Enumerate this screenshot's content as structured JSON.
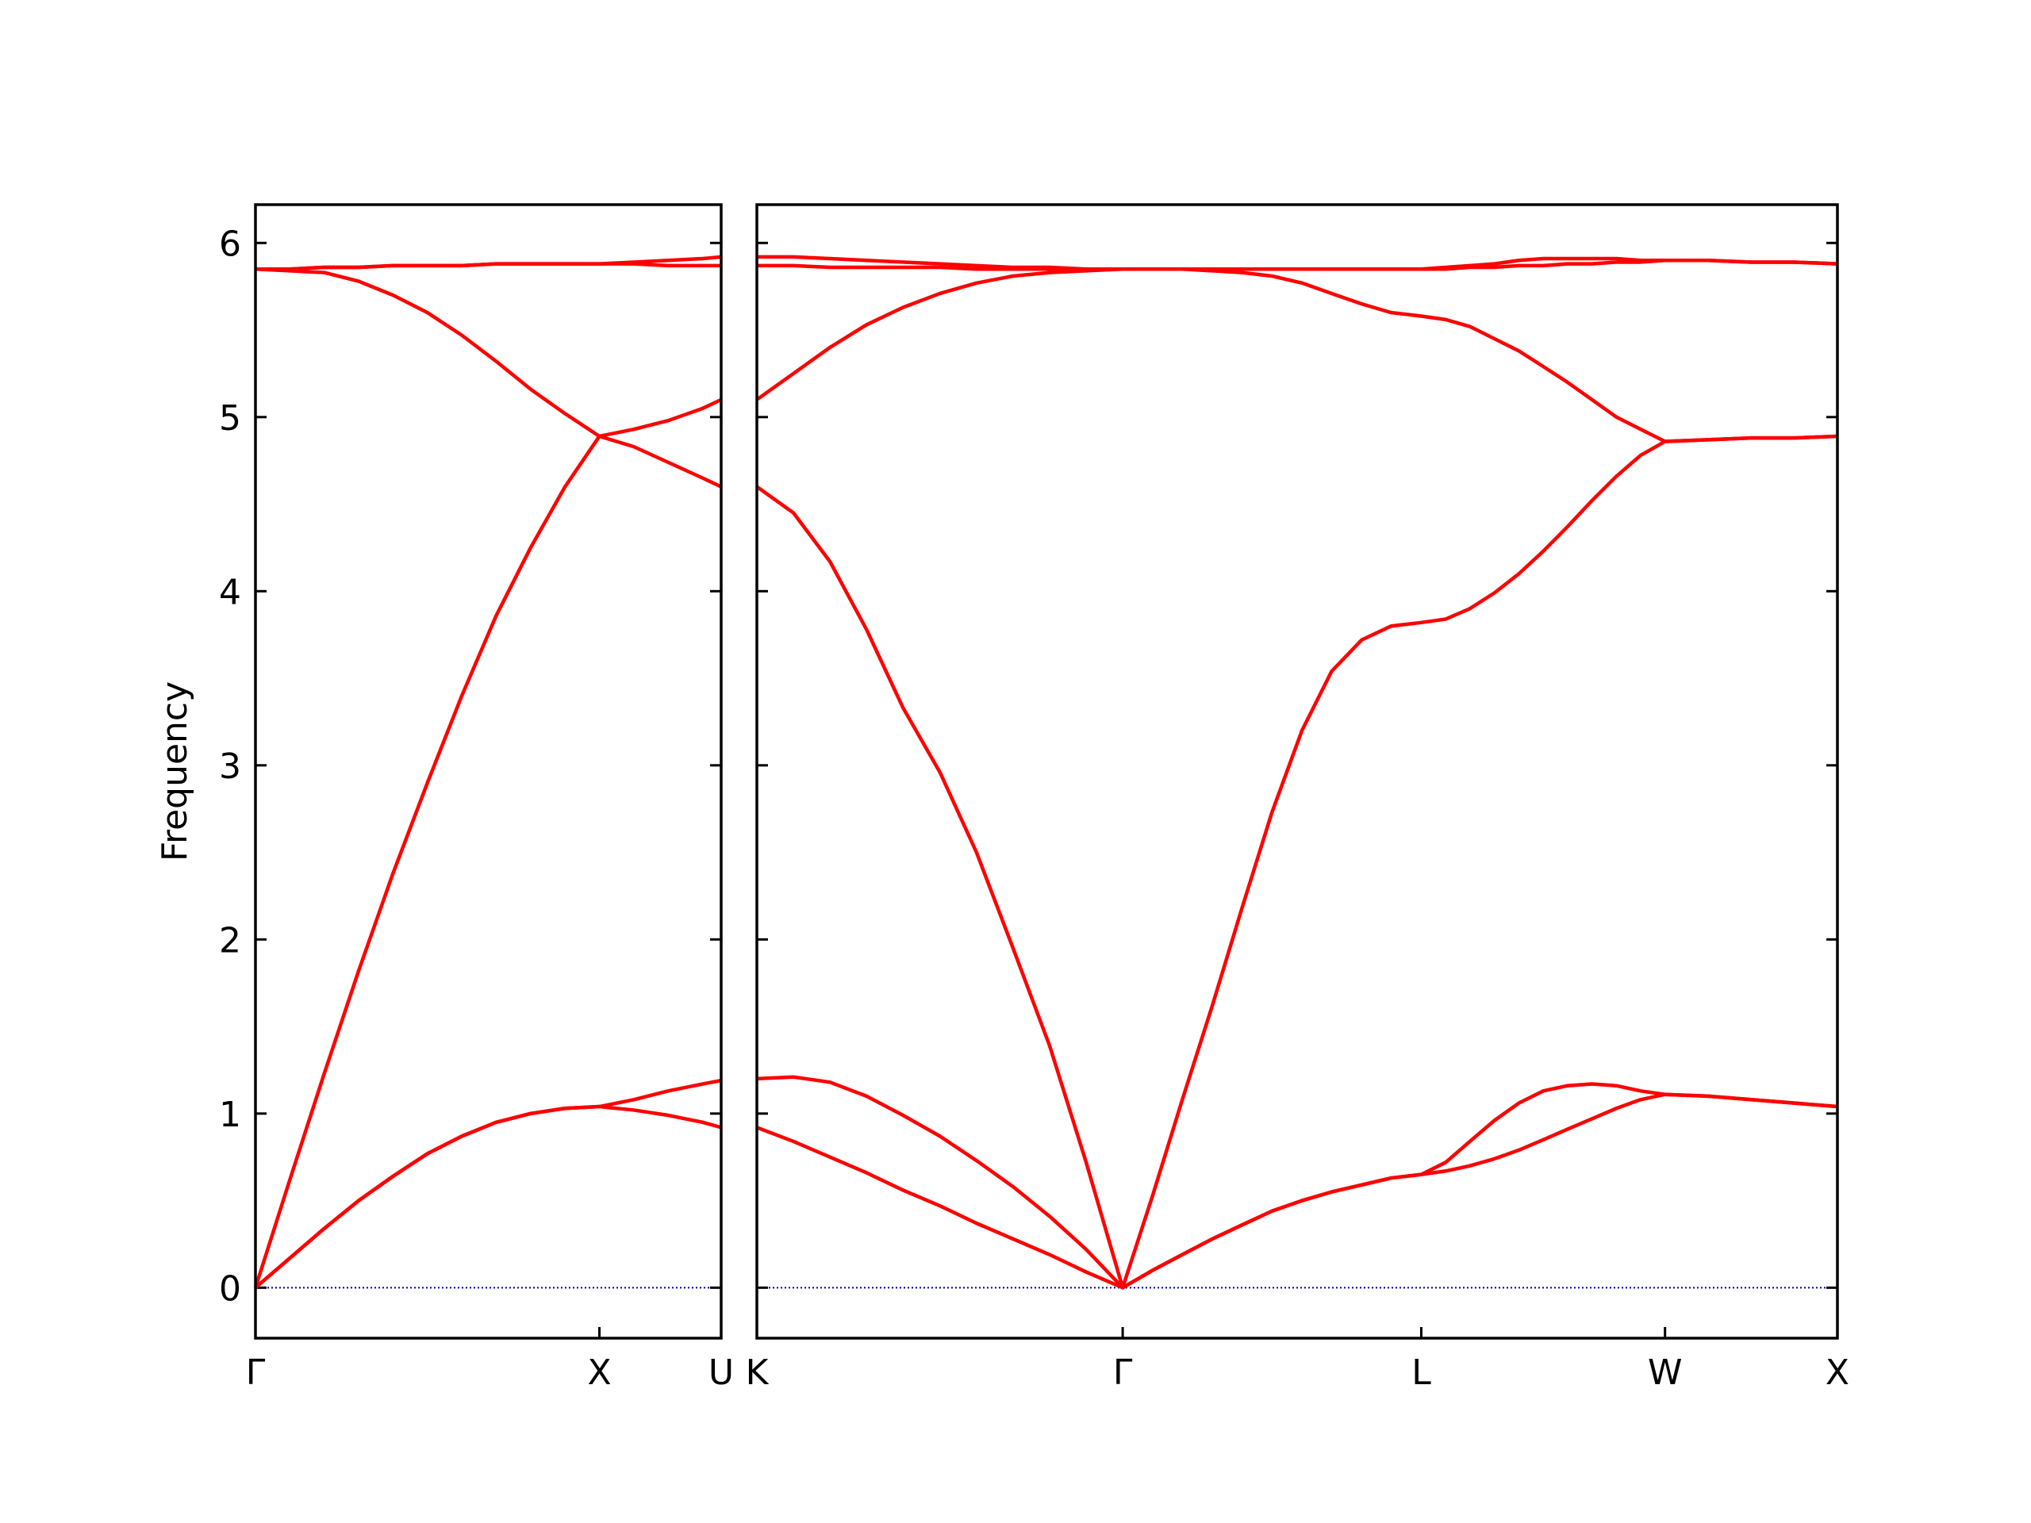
{
  "chart_data": [
    {
      "type": "line",
      "ylabel": "Frequency",
      "ytick_labels": true,
      "xlim": [
        0,
        1.354
      ],
      "ylim": [
        -0.29,
        6.22
      ],
      "xticks": [
        {
          "value": 0,
          "label": "Γ"
        },
        {
          "value": 1,
          "label": "X"
        },
        {
          "value": 1.354,
          "label": "U"
        }
      ],
      "yticks": [
        0,
        1,
        2,
        3,
        4,
        5,
        6
      ],
      "hline": {
        "value": 0,
        "color": "#0000aa",
        "style": "dotted"
      },
      "x": [
        0,
        0.1,
        0.2,
        0.3,
        0.4,
        0.5,
        0.6,
        0.7,
        0.8,
        0.9,
        1,
        1.1,
        1.2,
        1.3,
        1.354
      ],
      "series": [
        {
          "color": "#ff0000",
          "values": [
            0,
            0.17,
            0.34,
            0.5,
            0.64,
            0.77,
            0.87,
            0.95,
            1.0,
            1.03,
            1.04,
            1.02,
            0.99,
            0.95,
            0.92
          ]
        },
        {
          "color": "#ff0000",
          "values": [
            0,
            0.17,
            0.34,
            0.5,
            0.64,
            0.77,
            0.87,
            0.95,
            1.0,
            1.03,
            1.04,
            1.08,
            1.13,
            1.17,
            1.19
          ]
        },
        {
          "color": "#ff0000",
          "values": [
            0,
            0.62,
            1.23,
            1.82,
            2.38,
            2.9,
            3.4,
            3.86,
            4.25,
            4.6,
            4.89,
            4.83,
            4.74,
            4.65,
            4.6
          ]
        },
        {
          "color": "#ff0000",
          "values": [
            5.85,
            5.84,
            5.83,
            5.78,
            5.7,
            5.6,
            5.47,
            5.32,
            5.16,
            5.02,
            4.89,
            4.93,
            4.98,
            5.05,
            5.1
          ]
        },
        {
          "color": "#ff0000",
          "values": [
            5.85,
            5.85,
            5.86,
            5.86,
            5.87,
            5.87,
            5.87,
            5.88,
            5.88,
            5.88,
            5.88,
            5.88,
            5.87,
            5.87,
            5.87
          ]
        },
        {
          "color": "#ff0000",
          "values": [
            5.85,
            5.85,
            5.86,
            5.86,
            5.87,
            5.87,
            5.87,
            5.88,
            5.88,
            5.88,
            5.88,
            5.89,
            5.9,
            5.91,
            5.92
          ]
        }
      ]
    },
    {
      "type": "line",
      "ytick_labels": false,
      "xlim": [
        1.354,
        4.488
      ],
      "ylim": [
        -0.29,
        6.22
      ],
      "xticks": [
        {
          "value": 1.354,
          "label": "K"
        },
        {
          "value": 2.415,
          "label": "Γ"
        },
        {
          "value": 3.281,
          "label": "L"
        },
        {
          "value": 3.988,
          "label": "W"
        },
        {
          "value": 4.488,
          "label": "X"
        }
      ],
      "yticks": [
        0,
        1,
        2,
        3,
        4,
        5,
        6
      ],
      "hline": {
        "value": 0,
        "color": "#0000aa",
        "style": "dotted"
      },
      "x": [
        1.354,
        1.46,
        1.566,
        1.672,
        1.778,
        1.885,
        1.991,
        2.097,
        2.203,
        2.309,
        2.415,
        2.502,
        2.588,
        2.675,
        2.761,
        2.848,
        2.935,
        3.021,
        3.108,
        3.194,
        3.281,
        3.352,
        3.422,
        3.493,
        3.564,
        3.635,
        3.705,
        3.776,
        3.847,
        3.917,
        3.988,
        4.113,
        4.238,
        4.363,
        4.488
      ],
      "series": [
        {
          "color": "#ff0000",
          "values": [
            0.92,
            0.84,
            0.75,
            0.66,
            0.56,
            0.47,
            0.37,
            0.28,
            0.19,
            0.09,
            0,
            0.1,
            0.19,
            0.28,
            0.36,
            0.44,
            0.5,
            0.55,
            0.59,
            0.63,
            0.65,
            0.67,
            0.7,
            0.74,
            0.79,
            0.85,
            0.91,
            0.97,
            1.03,
            1.08,
            1.11,
            1.1,
            1.08,
            1.06,
            1.04
          ]
        },
        {
          "color": "#ff0000",
          "values": [
            1.2,
            1.21,
            1.18,
            1.1,
            0.99,
            0.87,
            0.73,
            0.58,
            0.41,
            0.22,
            0,
            0.1,
            0.19,
            0.28,
            0.36,
            0.44,
            0.5,
            0.55,
            0.59,
            0.63,
            0.65,
            0.72,
            0.84,
            0.96,
            1.06,
            1.13,
            1.16,
            1.17,
            1.16,
            1.13,
            1.11,
            1.1,
            1.08,
            1.06,
            1.04
          ]
        },
        {
          "color": "#ff0000",
          "values": [
            4.6,
            4.45,
            4.17,
            3.78,
            3.33,
            2.96,
            2.5,
            1.95,
            1.39,
            0.72,
            0,
            0.53,
            1.08,
            1.62,
            2.18,
            2.73,
            3.2,
            3.54,
            3.72,
            3.8,
            3.82,
            3.84,
            3.9,
            3.99,
            4.1,
            4.23,
            4.37,
            4.52,
            4.66,
            4.78,
            4.86,
            4.87,
            4.88,
            4.88,
            4.89
          ]
        },
        {
          "color": "#ff0000",
          "values": [
            5.1,
            5.25,
            5.4,
            5.53,
            5.63,
            5.71,
            5.77,
            5.81,
            5.83,
            5.84,
            5.85,
            5.85,
            5.85,
            5.84,
            5.83,
            5.81,
            5.77,
            5.71,
            5.65,
            5.6,
            5.58,
            5.56,
            5.52,
            5.45,
            5.38,
            5.29,
            5.2,
            5.1,
            5.0,
            4.93,
            4.86,
            4.87,
            4.88,
            4.88,
            4.89
          ]
        },
        {
          "color": "#ff0000",
          "values": [
            5.87,
            5.87,
            5.86,
            5.86,
            5.86,
            5.86,
            5.85,
            5.85,
            5.85,
            5.85,
            5.85,
            5.85,
            5.85,
            5.85,
            5.85,
            5.85,
            5.85,
            5.85,
            5.85,
            5.85,
            5.85,
            5.85,
            5.86,
            5.86,
            5.87,
            5.87,
            5.88,
            5.88,
            5.89,
            5.89,
            5.9,
            5.9,
            5.89,
            5.89,
            5.88
          ]
        },
        {
          "color": "#ff0000",
          "values": [
            5.92,
            5.92,
            5.91,
            5.9,
            5.89,
            5.88,
            5.87,
            5.86,
            5.86,
            5.85,
            5.85,
            5.85,
            5.85,
            5.85,
            5.85,
            5.85,
            5.85,
            5.85,
            5.85,
            5.85,
            5.85,
            5.86,
            5.87,
            5.88,
            5.9,
            5.91,
            5.91,
            5.91,
            5.91,
            5.9,
            5.9,
            5.9,
            5.89,
            5.89,
            5.88
          ]
        }
      ]
    }
  ]
}
